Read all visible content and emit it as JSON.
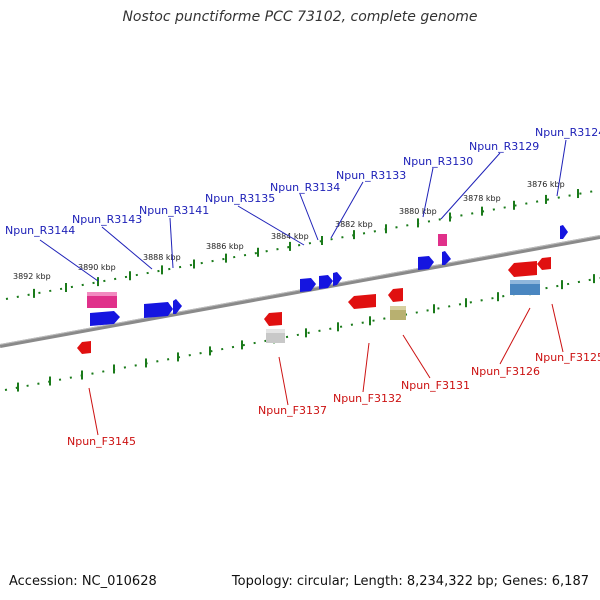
{
  "title": "Nostoc punctiforme PCC 73102, complete genome",
  "footer": {
    "accession": "Accession: NC_010628",
    "summary": "Topology: circular; Length: 8,234,322 bp; Genes: 6,187"
  },
  "scale_labels": [
    "3892 kbp",
    "3890 kbp",
    "3888 kbp",
    "3886 kbp",
    "3884 kbp",
    "3882 kbp",
    "3880 kbp",
    "3878 kbp",
    "3876 kbp"
  ],
  "top_gene_labels": [
    "Npun_R3144",
    "Npun_R3143",
    "Npun_R3141",
    "Npun_R3135",
    "Npun_R3134",
    "Npun_R3133",
    "Npun_R3130",
    "Npun_R3129",
    "Npun_R3124"
  ],
  "bottom_gene_labels": [
    "Npun_F3145",
    "Npun_F3137",
    "Npun_F3132",
    "Npun_F3131",
    "Npun_F3126",
    "Npun_F3125"
  ],
  "colors": {
    "backbone": "#8a8a8a",
    "scale_ticks": "#1a7a1a",
    "top_label": "#1f22b8",
    "bottom_label": "#cc1111",
    "gene_blue": "#1515e0",
    "gene_red": "#e01010",
    "gene_pink": "#e0308a",
    "gene_grey": "#c8c8c8",
    "gene_olive": "#b8b070",
    "gene_steel": "#4a86c0"
  }
}
